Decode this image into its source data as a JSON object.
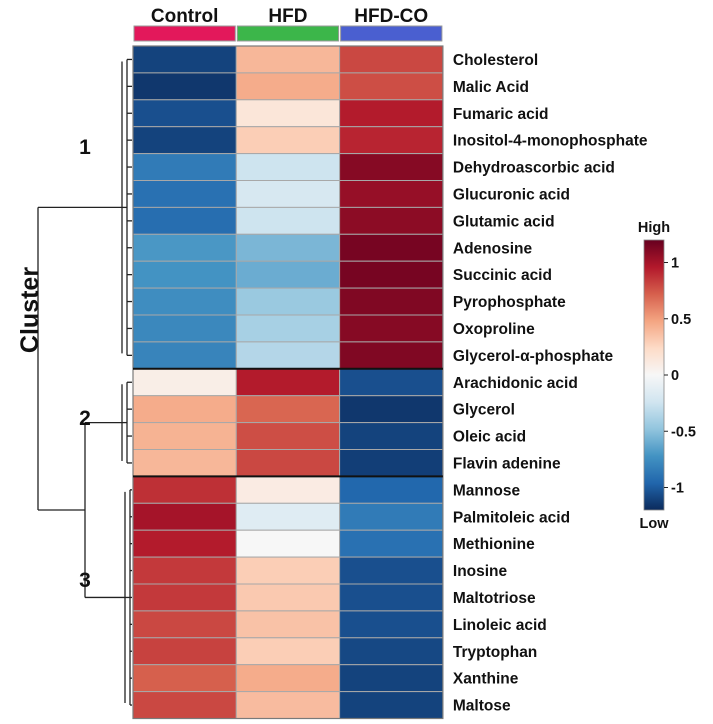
{
  "chart_data": {
    "type": "heatmap",
    "columns": [
      "Control",
      "HFD",
      "HFD-CO"
    ],
    "column_colors": [
      "#e3185b",
      "#3cb64a",
      "#4a5fd0"
    ],
    "rows": [
      "Cholesterol",
      "Malic Acid",
      "Fumaric acid",
      "Inositol-4-monophosphate",
      "Dehydroascorbic acid",
      "Glucuronic acid",
      "Glutamic acid",
      "Adenosine",
      "Succinic acid",
      "Pyrophosphate",
      "Oxoproline",
      "Glycerol-α-phosphate",
      "Arachidonic acid",
      "Glycerol",
      "Oleic acid",
      "Flavin adenine",
      "Mannose",
      "Palmitoleic acid",
      "Methionine",
      "Inosine",
      "Maltotriose",
      "Linoleic acid",
      "Tryptophan",
      "Xanthine",
      "Maltose"
    ],
    "values": [
      [
        -1.1,
        0.4,
        0.8
      ],
      [
        -1.15,
        0.45,
        0.78
      ],
      [
        -1.05,
        0.15,
        0.95
      ],
      [
        -1.1,
        0.3,
        0.92
      ],
      [
        -0.85,
        -0.25,
        1.1
      ],
      [
        -0.9,
        -0.2,
        1.05
      ],
      [
        -0.92,
        -0.25,
        1.08
      ],
      [
        -0.7,
        -0.55,
        1.15
      ],
      [
        -0.72,
        -0.6,
        1.15
      ],
      [
        -0.75,
        -0.45,
        1.12
      ],
      [
        -0.78,
        -0.4,
        1.1
      ],
      [
        -0.8,
        -0.35,
        1.12
      ],
      [
        0.08,
        0.95,
        -1.05
      ],
      [
        0.45,
        0.7,
        -1.15
      ],
      [
        0.42,
        0.78,
        -1.1
      ],
      [
        0.4,
        0.8,
        -1.12
      ],
      [
        0.88,
        0.1,
        -0.95
      ],
      [
        1.0,
        -0.15,
        -0.85
      ],
      [
        0.95,
        0.0,
        -0.9
      ],
      [
        0.85,
        0.3,
        -1.05
      ],
      [
        0.85,
        0.32,
        -1.05
      ],
      [
        0.8,
        0.35,
        -1.05
      ],
      [
        0.82,
        0.3,
        -1.08
      ],
      [
        0.72,
        0.45,
        -1.1
      ],
      [
        0.8,
        0.38,
        -1.1
      ]
    ],
    "clusters": [
      {
        "label": "1",
        "start": 0,
        "end": 11
      },
      {
        "label": "2",
        "start": 12,
        "end": 15
      },
      {
        "label": "3",
        "start": 16,
        "end": 24
      }
    ],
    "row_axis_title": "Cluster",
    "color_scale": {
      "min": -1.2,
      "max": 1.2,
      "ticks": [
        "1",
        "0.5",
        "0",
        "-0.5",
        "-1"
      ],
      "tick_values": [
        1,
        0.5,
        0,
        -0.5,
        -1
      ],
      "high_label": "High",
      "low_label": "Low",
      "colors": [
        "#0b2a5c",
        "#2166ac",
        "#4393c3",
        "#92c5de",
        "#d1e5f0",
        "#f7f7f7",
        "#fddbc7",
        "#f4a582",
        "#d6604d",
        "#b2182b",
        "#67001f"
      ]
    }
  }
}
